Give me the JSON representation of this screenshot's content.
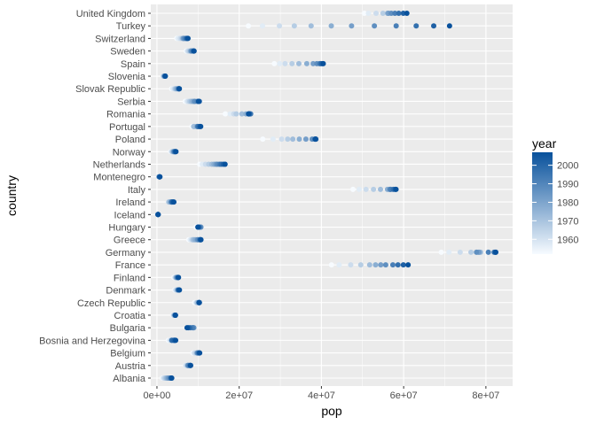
{
  "chart_data": {
    "type": "scatter",
    "title": "",
    "xlabel": "pop",
    "ylabel": "country",
    "xlim": [
      -1500000,
      86500000
    ],
    "x_ticks": [
      {
        "value": 0,
        "label": "0e+00"
      },
      {
        "value": 20000000,
        "label": "2e+07"
      },
      {
        "value": 40000000,
        "label": "4e+07"
      },
      {
        "value": 60000000,
        "label": "6e+07"
      },
      {
        "value": 80000000,
        "label": "8e+07"
      }
    ],
    "grid": true,
    "legend": {
      "title": "year",
      "placement": "right",
      "range": [
        1952,
        2007
      ],
      "ticks": [
        1960,
        1970,
        1980,
        1990,
        2000
      ],
      "color_low": "#f7fbff",
      "color_high": "#08519c"
    },
    "years": [
      1952,
      1957,
      1962,
      1967,
      1972,
      1977,
      1982,
      1987,
      1992,
      1997,
      2002,
      2007
    ],
    "countries": [
      "Albania",
      "Austria",
      "Belgium",
      "Bosnia and Herzegovina",
      "Bulgaria",
      "Croatia",
      "Czech Republic",
      "Denmark",
      "Finland",
      "France",
      "Germany",
      "Greece",
      "Hungary",
      "Iceland",
      "Ireland",
      "Italy",
      "Montenegro",
      "Netherlands",
      "Norway",
      "Poland",
      "Portugal",
      "Romania",
      "Serbia",
      "Slovak Republic",
      "Slovenia",
      "Spain",
      "Sweden",
      "Switzerland",
      "Turkey",
      "United Kingdom"
    ],
    "series": [
      {
        "country": "Albania",
        "pop": [
          1282697,
          1476505,
          1728137,
          1984060,
          2263554,
          2509048,
          2780097,
          3075321,
          3326498,
          3428038,
          3508512,
          3600523
        ]
      },
      {
        "country": "Austria",
        "pop": [
          6927772,
          6965860,
          7129864,
          7376998,
          7544201,
          7568430,
          7574613,
          7578903,
          7914969,
          8069876,
          8148312,
          8199783
        ]
      },
      {
        "country": "Belgium",
        "pop": [
          8730405,
          8989111,
          9218400,
          9556500,
          9709100,
          9821800,
          9856303,
          9870200,
          10045622,
          10199787,
          10311970,
          10392226
        ]
      },
      {
        "country": "Bosnia and Herzegovina",
        "pop": [
          2791000,
          3076000,
          3349000,
          3585000,
          3819000,
          4086000,
          4172693,
          4338977,
          4256013,
          3607000,
          4165416,
          4552198
        ]
      },
      {
        "country": "Bulgaria",
        "pop": [
          7274900,
          7651254,
          8012946,
          8310226,
          8576200,
          8797022,
          8892098,
          8971958,
          8658506,
          8066057,
          7661799,
          7322858
        ]
      },
      {
        "country": "Croatia",
        "pop": [
          3882229,
          3991242,
          4076557,
          4174366,
          4225310,
          4318673,
          4413368,
          4484310,
          4494013,
          4444595,
          4481020,
          4493312
        ]
      },
      {
        "country": "Czech Republic",
        "pop": [
          9125183,
          9513758,
          9620282,
          9835109,
          9862158,
          10161915,
          10303704,
          10311597,
          10315702,
          10300707,
          10256295,
          10228744
        ]
      },
      {
        "country": "Denmark",
        "pop": [
          4334000,
          4487831,
          4646899,
          4838800,
          4991596,
          5088419,
          5117810,
          5127024,
          5171393,
          5283663,
          5374693,
          5468120
        ]
      },
      {
        "country": "Finland",
        "pop": [
          4090500,
          4324000,
          4491443,
          4605744,
          4639657,
          4738902,
          4826933,
          4931729,
          5041039,
          5134406,
          5193039,
          5238460
        ]
      },
      {
        "country": "France",
        "pop": [
          42459667,
          44310863,
          47124000,
          49569000,
          51732000,
          53165019,
          54433565,
          55630100,
          57374179,
          58623428,
          59925035,
          61083916
        ]
      },
      {
        "country": "Germany",
        "pop": [
          69145952,
          71019069,
          73739117,
          76368453,
          78717088,
          78160773,
          78335266,
          77718298,
          80597764,
          82011073,
          82350671,
          82400996
        ]
      },
      {
        "country": "Greece",
        "pop": [
          7733250,
          8096218,
          8448233,
          8716441,
          8888628,
          9308479,
          9786480,
          9974490,
          10325429,
          10502372,
          10603863,
          10706290
        ]
      },
      {
        "country": "Hungary",
        "pop": [
          9504000,
          9839000,
          10063000,
          10223422,
          10394091,
          10637171,
          10705535,
          10612740,
          10348684,
          10244684,
          10083313,
          9956108
        ]
      },
      {
        "country": "Iceland",
        "pop": [
          147962,
          165110,
          182053,
          198676,
          209275,
          221823,
          233997,
          244676,
          259012,
          271192,
          288030,
          301931
        ]
      },
      {
        "country": "Ireland",
        "pop": [
          2952156,
          2878220,
          2830000,
          2900100,
          3024400,
          3271900,
          3480000,
          3539900,
          3557761,
          3667233,
          3879155,
          4109086
        ]
      },
      {
        "country": "Italy",
        "pop": [
          47666000,
          49182000,
          50843200,
          52667100,
          54365564,
          56059245,
          56535636,
          56729703,
          56840847,
          57479469,
          57926999,
          58147733
        ]
      },
      {
        "country": "Montenegro",
        "pop": [
          413834,
          442829,
          474528,
          501035,
          527678,
          560073,
          562548,
          569473,
          621621,
          692651,
          720230,
          684736
        ]
      },
      {
        "country": "Netherlands",
        "pop": [
          10381988,
          11026383,
          11805689,
          12596822,
          13329874,
          13852989,
          14310401,
          14665278,
          15174244,
          15604464,
          16122830,
          16570613
        ]
      },
      {
        "country": "Norway",
        "pop": [
          3327728,
          3491938,
          3638919,
          3786019,
          3933004,
          4043205,
          4114787,
          4186147,
          4286357,
          4405672,
          4535591,
          4627926
        ]
      },
      {
        "country": "Poland",
        "pop": [
          25730551,
          28235346,
          30329617,
          31785378,
          33039545,
          34621254,
          36227381,
          37740710,
          38370697,
          38654957,
          38625976,
          38518241
        ]
      },
      {
        "country": "Portugal",
        "pop": [
          8526050,
          8817650,
          9019800,
          9103000,
          8970450,
          9662600,
          9859650,
          9915289,
          9927680,
          10156415,
          10433867,
          10642836
        ]
      },
      {
        "country": "Romania",
        "pop": [
          16630000,
          17829327,
          18680721,
          19284814,
          20662648,
          21658597,
          22356726,
          22686371,
          22797027,
          22562458,
          22404337,
          22276056
        ]
      },
      {
        "country": "Serbia",
        "pop": [
          6860147,
          7271135,
          7616060,
          7971222,
          8313288,
          8686367,
          9032824,
          9230783,
          9826397,
          10336594,
          10111559,
          10150265
        ]
      },
      {
        "country": "Slovak Republic",
        "pop": [
          3558137,
          3844277,
          4237384,
          4442238,
          4593433,
          4827803,
          5048043,
          5199318,
          5302888,
          5383010,
          5410052,
          5447502
        ]
      },
      {
        "country": "Slovenia",
        "pop": [
          1489518,
          1533070,
          1582962,
          1646912,
          1694510,
          1746919,
          1861252,
          1945870,
          1999210,
          2011612,
          2011497,
          2009245
        ]
      },
      {
        "country": "Spain",
        "pop": [
          28549870,
          29841614,
          31158061,
          32850275,
          34513161,
          36439000,
          37983310,
          38880702,
          39549438,
          39855442,
          40152517,
          40448191
        ]
      },
      {
        "country": "Sweden",
        "pop": [
          7124673,
          7363802,
          7561588,
          7867931,
          8122293,
          8251648,
          8325260,
          8421403,
          8718867,
          8897619,
          8954175,
          9031088
        ]
      },
      {
        "country": "Switzerland",
        "pop": [
          4815000,
          5126000,
          5666000,
          6063000,
          6401400,
          6316424,
          6468126,
          6649942,
          6995447,
          7193761,
          7361757,
          7554661
        ]
      },
      {
        "country": "Turkey",
        "pop": [
          22235677,
          25670939,
          29788695,
          33411317,
          37492953,
          42404033,
          47328791,
          52881328,
          58179144,
          63047647,
          67308928,
          71158647
        ]
      },
      {
        "country": "United Kingdom",
        "pop": [
          50430000,
          51430000,
          53292000,
          54959000,
          56079000,
          56179000,
          56339704,
          56981620,
          57866349,
          58808266,
          59912431,
          60776238
        ]
      }
    ]
  }
}
